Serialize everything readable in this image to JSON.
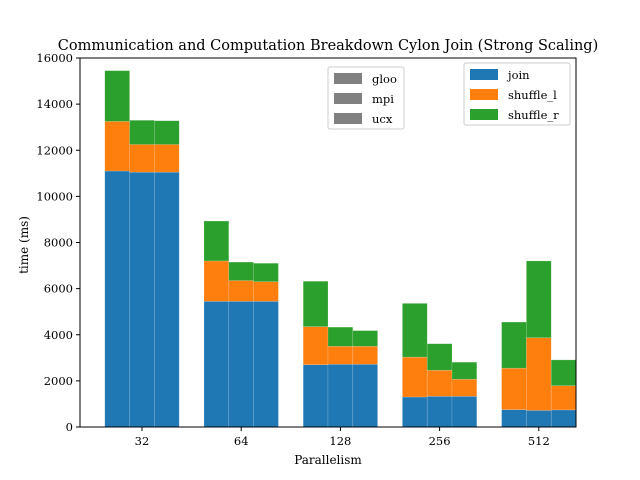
{
  "chart_data": {
    "type": "bar",
    "stacked": true,
    "title": "Communication and Computation Breakdown Cylon Join (Strong Scaling)",
    "xlabel": "Parallelism",
    "ylabel": "time (ms)",
    "categories": [
      "32",
      "64",
      "128",
      "256",
      "512"
    ],
    "ylim": [
      0,
      16000
    ],
    "yticks": [
      0,
      2000,
      4000,
      6000,
      8000,
      10000,
      12000,
      14000,
      16000
    ],
    "grid": false,
    "variants": [
      "gloo",
      "mpi",
      "ucx"
    ],
    "series": [
      {
        "name": "join",
        "color": "#1f77b4",
        "values": [
          [
            11100,
            11050,
            11050
          ],
          [
            5450,
            5450,
            5450
          ],
          [
            2700,
            2720,
            2720
          ],
          [
            1300,
            1330,
            1330
          ],
          [
            750,
            720,
            740
          ]
        ]
      },
      {
        "name": "shuffle_l",
        "color": "#ff7f0e",
        "values": [
          [
            2150,
            1200,
            1200
          ],
          [
            1750,
            900,
            850
          ],
          [
            1650,
            780,
            780
          ],
          [
            1730,
            1130,
            740
          ],
          [
            1800,
            3150,
            1050
          ]
        ]
      },
      {
        "name": "shuffle_r",
        "color": "#2ca02c",
        "values": [
          [
            2200,
            1050,
            1030
          ],
          [
            1730,
            800,
            800
          ],
          [
            1970,
            830,
            680
          ],
          [
            2330,
            1150,
            740
          ],
          [
            2000,
            3330,
            1120
          ]
        ]
      }
    ],
    "legend_series_placement": "top-right",
    "legend_variants_placement": "top-center",
    "variant_legend_color": "#808080"
  }
}
